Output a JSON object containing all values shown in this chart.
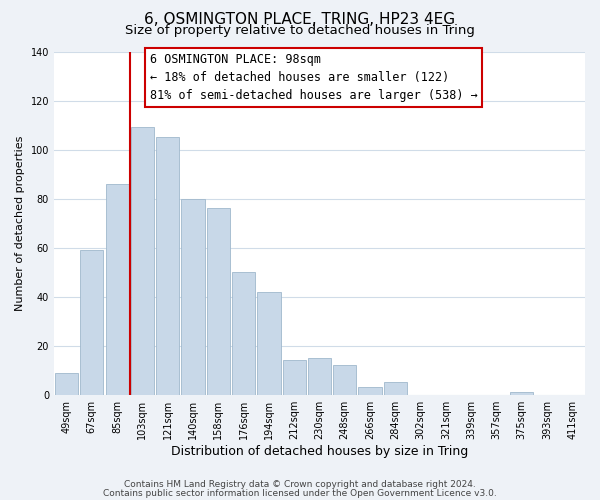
{
  "title": "6, OSMINGTON PLACE, TRING, HP23 4EG",
  "subtitle": "Size of property relative to detached houses in Tring",
  "xlabel": "Distribution of detached houses by size in Tring",
  "ylabel": "Number of detached properties",
  "bar_color": "#c8d8e8",
  "bar_edge_color": "#a0b8cc",
  "categories": [
    "49sqm",
    "67sqm",
    "85sqm",
    "103sqm",
    "121sqm",
    "140sqm",
    "158sqm",
    "176sqm",
    "194sqm",
    "212sqm",
    "230sqm",
    "248sqm",
    "266sqm",
    "284sqm",
    "302sqm",
    "321sqm",
    "339sqm",
    "357sqm",
    "375sqm",
    "393sqm",
    "411sqm"
  ],
  "values": [
    9,
    59,
    86,
    109,
    105,
    80,
    76,
    50,
    42,
    14,
    15,
    12,
    3,
    5,
    0,
    0,
    0,
    0,
    1,
    0,
    0
  ],
  "ylim": [
    0,
    140
  ],
  "yticks": [
    0,
    20,
    40,
    60,
    80,
    100,
    120,
    140
  ],
  "vline_color": "#cc0000",
  "annotation_title": "6 OSMINGTON PLACE: 98sqm",
  "annotation_line1": "← 18% of detached houses are smaller (122)",
  "annotation_line2": "81% of semi-detached houses are larger (538) →",
  "footer1": "Contains HM Land Registry data © Crown copyright and database right 2024.",
  "footer2": "Contains public sector information licensed under the Open Government Licence v3.0.",
  "background_color": "#eef2f7",
  "plot_background": "#ffffff",
  "grid_color": "#d0dce8",
  "title_fontsize": 11,
  "subtitle_fontsize": 9.5,
  "xlabel_fontsize": 9,
  "ylabel_fontsize": 8,
  "tick_fontsize": 7,
  "annotation_fontsize": 8.5,
  "footer_fontsize": 6.5
}
